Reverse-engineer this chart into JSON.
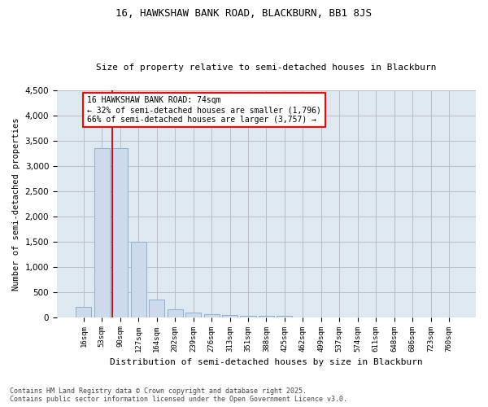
{
  "title1": "16, HAWKSHAW BANK ROAD, BLACKBURN, BB1 8JS",
  "title2": "Size of property relative to semi-detached houses in Blackburn",
  "xlabel": "Distribution of semi-detached houses by size in Blackburn",
  "ylabel": "Number of semi-detached properties",
  "bin_labels": [
    "16sqm",
    "53sqm",
    "90sqm",
    "127sqm",
    "164sqm",
    "202sqm",
    "239sqm",
    "276sqm",
    "313sqm",
    "351sqm",
    "388sqm",
    "425sqm",
    "462sqm",
    "499sqm",
    "537sqm",
    "574sqm",
    "611sqm",
    "648sqm",
    "686sqm",
    "723sqm",
    "760sqm"
  ],
  "bar_values": [
    200,
    3350,
    3350,
    1500,
    350,
    150,
    90,
    60,
    45,
    30,
    20,
    30,
    0,
    0,
    0,
    0,
    0,
    0,
    0,
    0,
    0
  ],
  "bar_color": "#ccdaeb",
  "bar_edge_color": "#8ab0cc",
  "annotation_text": "16 HAWKSHAW BANK ROAD: 74sqm\n← 32% of semi-detached houses are smaller (1,796)\n66% of semi-detached houses are larger (3,757) →",
  "ylim": [
    0,
    4500
  ],
  "yticks": [
    0,
    500,
    1000,
    1500,
    2000,
    2500,
    3000,
    3500,
    4000,
    4500
  ],
  "red_line_color": "#cc0000",
  "grid_color": "#bbbbcc",
  "plot_bg_color": "#dde8f0",
  "fig_bg_color": "#ffffff",
  "footnote": "Contains HM Land Registry data © Crown copyright and database right 2025.\nContains public sector information licensed under the Open Government Licence v3.0."
}
